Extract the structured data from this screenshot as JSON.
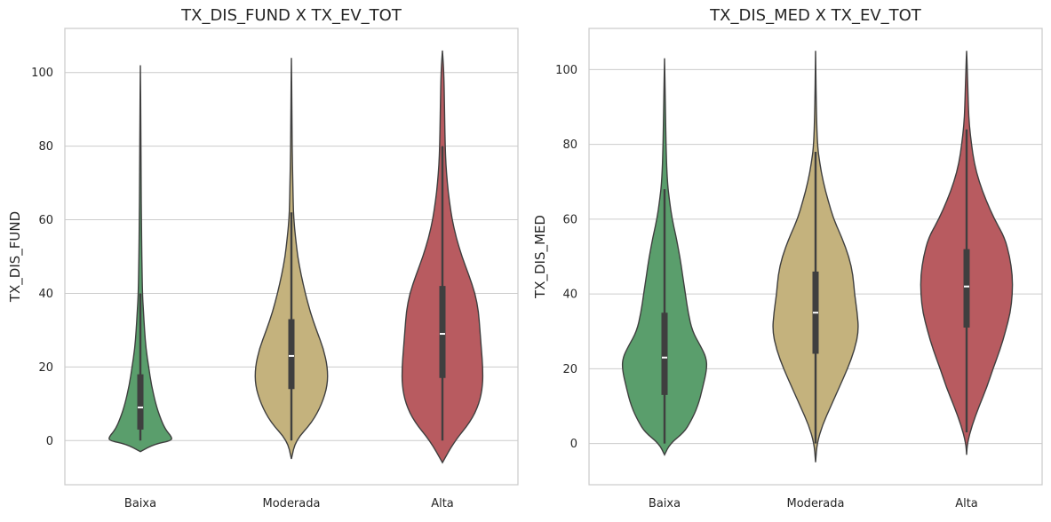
{
  "chart_data": [
    {
      "type": "violin",
      "title": "TX_DIS_FUND X TX_EV_TOT",
      "xlabel": "",
      "ylabel": "TX_DIS_FUND",
      "categories": [
        "Baixa",
        "Moderada",
        "Alta"
      ],
      "yticks": [
        0,
        20,
        40,
        60,
        80,
        100
      ],
      "ylim": [
        -12,
        112
      ],
      "grid": true,
      "violins": [
        {
          "category": "Baixa",
          "color": "#5a9e6c",
          "median": 9,
          "q1": 3,
          "q3": 18,
          "whisker_low": 0,
          "whisker_high": 40,
          "profile": [
            [
              -3,
              0.0
            ],
            [
              -1,
              0.2
            ],
            [
              0,
              0.45
            ],
            [
              1,
              0.45
            ],
            [
              3,
              0.36
            ],
            [
              6,
              0.29
            ],
            [
              10,
              0.22
            ],
            [
              15,
              0.16
            ],
            [
              20,
              0.12
            ],
            [
              25,
              0.08
            ],
            [
              30,
              0.06
            ],
            [
              35,
              0.045
            ],
            [
              40,
              0.03
            ],
            [
              50,
              0.02
            ],
            [
              60,
              0.015
            ],
            [
              70,
              0.01
            ],
            [
              85,
              0.008
            ],
            [
              102,
              0.0
            ]
          ]
        },
        {
          "category": "Moderada",
          "color": "#c4b27d",
          "median": 23,
          "q1": 14,
          "q3": 33,
          "whisker_low": 0,
          "whisker_high": 62,
          "profile": [
            [
              -5,
              0.0
            ],
            [
              0,
              0.06
            ],
            [
              5,
              0.3
            ],
            [
              10,
              0.44
            ],
            [
              15,
              0.52
            ],
            [
              20,
              0.52
            ],
            [
              25,
              0.46
            ],
            [
              30,
              0.36
            ],
            [
              35,
              0.27
            ],
            [
              40,
              0.2
            ],
            [
              45,
              0.14
            ],
            [
              50,
              0.09
            ],
            [
              55,
              0.06
            ],
            [
              60,
              0.035
            ],
            [
              65,
              0.025
            ],
            [
              70,
              0.02
            ],
            [
              80,
              0.01
            ],
            [
              90,
              0.008
            ],
            [
              104,
              0.0
            ]
          ]
        },
        {
          "category": "Alta",
          "color": "#b85b60",
          "median": 29,
          "q1": 17,
          "q3": 42,
          "whisker_low": 0,
          "whisker_high": 80,
          "profile": [
            [
              -6,
              0.0
            ],
            [
              0,
              0.18
            ],
            [
              5,
              0.4
            ],
            [
              10,
              0.53
            ],
            [
              15,
              0.58
            ],
            [
              20,
              0.58
            ],
            [
              25,
              0.56
            ],
            [
              30,
              0.54
            ],
            [
              35,
              0.52
            ],
            [
              40,
              0.47
            ],
            [
              45,
              0.38
            ],
            [
              50,
              0.28
            ],
            [
              55,
              0.2
            ],
            [
              60,
              0.14
            ],
            [
              65,
              0.1
            ],
            [
              70,
              0.07
            ],
            [
              75,
              0.05
            ],
            [
              80,
              0.04
            ],
            [
              90,
              0.03
            ],
            [
              100,
              0.02
            ],
            [
              106,
              0.0
            ]
          ]
        }
      ]
    },
    {
      "type": "violin",
      "title": "TX_DIS_MED X TX_EV_TOT",
      "xlabel": "",
      "ylabel": "TX_DIS_MED",
      "categories": [
        "Baixa",
        "Moderada",
        "Alta"
      ],
      "yticks": [
        0,
        20,
        40,
        60,
        80,
        100
      ],
      "ylim": [
        -11,
        111
      ],
      "grid": true,
      "violins": [
        {
          "category": "Baixa",
          "color": "#5a9e6c",
          "median": 23,
          "q1": 13,
          "q3": 35,
          "whisker_low": 0,
          "whisker_high": 68,
          "profile": [
            [
              -3,
              0.0
            ],
            [
              0,
              0.08
            ],
            [
              3,
              0.28
            ],
            [
              6,
              0.38
            ],
            [
              10,
              0.48
            ],
            [
              15,
              0.55
            ],
            [
              20,
              0.61
            ],
            [
              23,
              0.6
            ],
            [
              26,
              0.52
            ],
            [
              30,
              0.4
            ],
            [
              35,
              0.34
            ],
            [
              40,
              0.3
            ],
            [
              45,
              0.26
            ],
            [
              50,
              0.22
            ],
            [
              55,
              0.17
            ],
            [
              60,
              0.11
            ],
            [
              65,
              0.07
            ],
            [
              70,
              0.04
            ],
            [
              80,
              0.02
            ],
            [
              90,
              0.012
            ],
            [
              103,
              0.0
            ]
          ]
        },
        {
          "category": "Moderada",
          "color": "#c4b27d",
          "median": 35,
          "q1": 24,
          "q3": 46,
          "whisker_low": 0,
          "whisker_high": 78,
          "profile": [
            [
              -5,
              0.0
            ],
            [
              0,
              0.02
            ],
            [
              5,
              0.1
            ],
            [
              10,
              0.22
            ],
            [
              15,
              0.34
            ],
            [
              20,
              0.46
            ],
            [
              25,
              0.56
            ],
            [
              30,
              0.62
            ],
            [
              35,
              0.6
            ],
            [
              40,
              0.56
            ],
            [
              45,
              0.54
            ],
            [
              50,
              0.48
            ],
            [
              55,
              0.38
            ],
            [
              60,
              0.26
            ],
            [
              65,
              0.18
            ],
            [
              70,
              0.11
            ],
            [
              75,
              0.06
            ],
            [
              80,
              0.025
            ],
            [
              90,
              0.01
            ],
            [
              105,
              0.0
            ]
          ]
        },
        {
          "category": "Alta",
          "color": "#b85b60",
          "median": 42,
          "q1": 31,
          "q3": 52,
          "whisker_low": 3,
          "whisker_high": 84,
          "profile": [
            [
              -3,
              0.0
            ],
            [
              0,
              0.01
            ],
            [
              5,
              0.08
            ],
            [
              10,
              0.18
            ],
            [
              15,
              0.29
            ],
            [
              20,
              0.38
            ],
            [
              25,
              0.48
            ],
            [
              30,
              0.56
            ],
            [
              35,
              0.63
            ],
            [
              40,
              0.66
            ],
            [
              45,
              0.66
            ],
            [
              50,
              0.62
            ],
            [
              55,
              0.55
            ],
            [
              60,
              0.4
            ],
            [
              65,
              0.28
            ],
            [
              70,
              0.18
            ],
            [
              75,
              0.11
            ],
            [
              80,
              0.07
            ],
            [
              85,
              0.04
            ],
            [
              90,
              0.025
            ],
            [
              100,
              0.01
            ],
            [
              105,
              0.0
            ]
          ]
        }
      ]
    }
  ]
}
